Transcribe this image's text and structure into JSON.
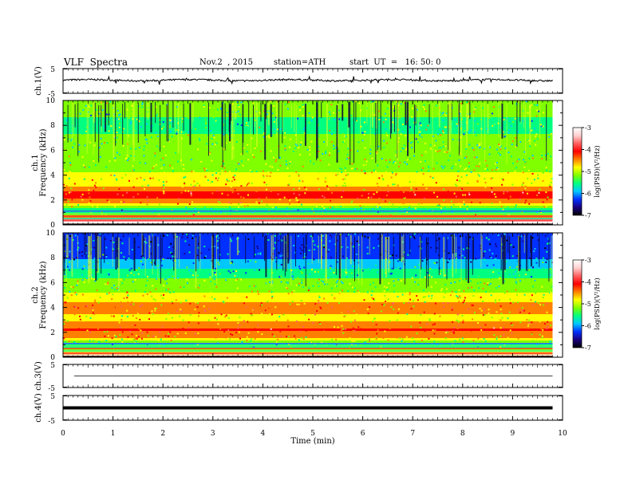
{
  "header": {
    "title": "VLF  Spectra",
    "date": "Nov.2  , 2015",
    "station": "station=ATH",
    "start": "start  UT  =   16: 50: 0"
  },
  "colors": {
    "colormap": [
      "#000000",
      "#1a0080",
      "#0030ff",
      "#00c8ff",
      "#00ff80",
      "#80ff00",
      "#ffff00",
      "#ff8000",
      "#ff0000",
      "#ff6060",
      "#ffd0d0",
      "#ffffff"
    ]
  },
  "chart_data": [
    {
      "type": "line",
      "panel": "ch1",
      "ylabel": "ch.1(V)",
      "ylim": [
        -5,
        5
      ],
      "yticks": [
        "5",
        "-5"
      ],
      "baseline": 0.3,
      "x": [
        0,
        1,
        2,
        3,
        4,
        5,
        6,
        7,
        8,
        9,
        9.8
      ],
      "values": [
        0.3,
        0.2,
        0.3,
        0.2,
        0.3,
        0.3,
        0.2,
        0.3,
        0.3,
        0.2,
        0.3
      ]
    },
    {
      "type": "heatmap",
      "panel": "ch1-spectrogram",
      "ylabel_line1": "ch.1",
      "ylabel_line2": "Frequency  (kHz)",
      "ylim": [
        0,
        10
      ],
      "yticks": [
        "0",
        "2",
        "4",
        "6",
        "8",
        "10"
      ],
      "colorbar_label": "log(PSD)(V²/Hz)",
      "colorbar_ticks": [
        "-3",
        "-4",
        "-5",
        "-6",
        "-7"
      ],
      "band_levels": [
        {
          "f": 10,
          "level": -5.3
        },
        {
          "f": 8,
          "level": -5.4
        },
        {
          "f": 6.5,
          "level": -5.3
        },
        {
          "f": 5,
          "level": -5.1
        },
        {
          "f": 3.5,
          "level": -4.9
        },
        {
          "f": 2.5,
          "level": -4.1
        },
        {
          "f": 1.8,
          "level": -4.6
        },
        {
          "f": 1.2,
          "level": -5.8
        },
        {
          "f": 0.5,
          "level": -3.5
        }
      ]
    },
    {
      "type": "heatmap",
      "panel": "ch2-spectrogram",
      "ylabel_line1": "ch.2",
      "ylabel_line2": "Frequency  (kHz)",
      "ylim": [
        0,
        10
      ],
      "yticks": [
        "0",
        "2",
        "4",
        "6",
        "8",
        "10"
      ],
      "colorbar_label": "log(PSD)(V²/Hz)",
      "colorbar_ticks": [
        "-3",
        "-4",
        "-5",
        "-6",
        "-7"
      ],
      "band_levels": [
        {
          "f": 10,
          "level": -6.3
        },
        {
          "f": 8,
          "level": -6.1
        },
        {
          "f": 6.5,
          "level": -5.4
        },
        {
          "f": 5,
          "level": -4.9
        },
        {
          "f": 4,
          "level": -4.3
        },
        {
          "f": 3.2,
          "level": -4.8
        },
        {
          "f": 2.4,
          "level": -4.2
        },
        {
          "f": 1.6,
          "level": -4.7
        },
        {
          "f": 1.0,
          "level": -5.6
        },
        {
          "f": 0.3,
          "level": -4.5
        }
      ]
    },
    {
      "type": "line",
      "panel": "ch3",
      "ylabel": "ch.3(V)",
      "ylim": [
        -5,
        5
      ],
      "yticks": [
        "5",
        "-5"
      ],
      "baseline": 0.0,
      "x": [
        0,
        9.8
      ],
      "values": [
        0.0,
        0.0
      ]
    },
    {
      "type": "line",
      "panel": "ch4",
      "ylabel": "ch.4(V)",
      "ylim": [
        -5,
        5
      ],
      "yticks": [
        "5",
        "-5"
      ],
      "baseline": 0.0,
      "x": [
        0,
        9.8
      ],
      "values": [
        0.0,
        0.0
      ]
    }
  ],
  "xaxis": {
    "label": "Time  (min)",
    "ticks": [
      "0",
      "1",
      "2",
      "3",
      "4",
      "5",
      "6",
      "7",
      "8",
      "9",
      "10"
    ],
    "xlim": [
      0,
      10
    ],
    "data_end": 9.8
  }
}
